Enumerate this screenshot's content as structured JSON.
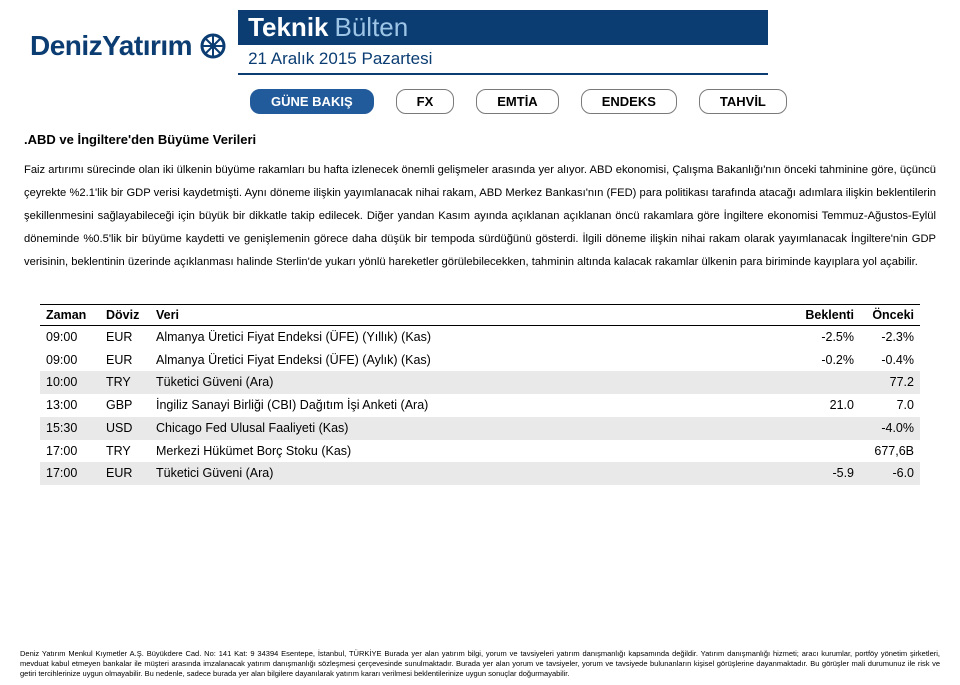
{
  "brand": {
    "name": "DenizYatırım",
    "color": "#0b3d73"
  },
  "title": {
    "strong": "Teknik",
    "light": "Bülten"
  },
  "date": "21 Aralık 2015 Pazartesi",
  "tabs": {
    "items": [
      {
        "label": "GÜNE BAKIŞ",
        "active": true
      },
      {
        "label": "FX",
        "active": false
      },
      {
        "label": "EMTİA",
        "active": false
      },
      {
        "label": "ENDEKS",
        "active": false
      },
      {
        "label": "TAHVİL",
        "active": false
      }
    ]
  },
  "article": {
    "heading": ".ABD ve İngiltere'den Büyüme Verileri",
    "body": "Faiz artırımı sürecinde olan iki ülkenin büyüme rakamları bu hafta izlenecek önemli gelişmeler arasında yer alıyor. ABD ekonomisi, Çalışma Bakanlığı'nın önceki tahminine göre, üçüncü çeyrekte %2.1'lik bir GDP verisi kaydetmişti. Aynı döneme ilişkin yayımlanacak nihai rakam, ABD Merkez Bankası'nın (FED) para politikası tarafında atacağı adımlara ilişkin beklentilerin şekillenmesini sağlayabileceği için büyük bir dikkatle takip edilecek. Diğer yandan Kasım ayında açıklanan açıklanan öncü rakamlara göre İngiltere ekonomisi Temmuz-Ağustos-Eylül döneminde %0.5'lik bir büyüme kaydetti ve genişlemenin görece daha düşük bir tempoda sürdüğünü gösterdi. İlgili döneme ilişkin nihai rakam olarak yayımlanacak İngiltere'nin GDP verisinin, beklentinin üzerinde açıklanması halinde Sterlin'de yukarı yönlü hareketler görülebilecekken, tahminin altında kalacak rakamlar ülkenin para biriminde kayıplara yol açabilir."
  },
  "table": {
    "headers": {
      "time": "Zaman",
      "currency": "Döviz",
      "desc": "Veri",
      "expect": "Beklenti",
      "prev": "Önceki"
    },
    "rows": [
      {
        "time": "09:00",
        "cur": "EUR",
        "desc": "Almanya Üretici Fiyat Endeksi (ÜFE) (Yıllık) (Kas)",
        "bek": "-2.5%",
        "onc": "-2.3%",
        "shade": false
      },
      {
        "time": "09:00",
        "cur": "EUR",
        "desc": "Almanya Üretici Fiyat Endeksi (ÜFE) (Aylık) (Kas)",
        "bek": "-0.2%",
        "onc": "-0.4%",
        "shade": false
      },
      {
        "time": "10:00",
        "cur": "TRY",
        "desc": "Tüketici Güveni (Ara)",
        "bek": "",
        "onc": "77.2",
        "shade": true
      },
      {
        "time": "13:00",
        "cur": "GBP",
        "desc": "İngiliz Sanayi Birliği (CBI) Dağıtım İşi Anketi (Ara)",
        "bek": "21.0",
        "onc": "7.0",
        "shade": false
      },
      {
        "time": "15:30",
        "cur": "USD",
        "desc": "Chicago Fed Ulusal Faaliyeti (Kas)",
        "bek": "",
        "onc": "-4.0%",
        "shade": true
      },
      {
        "time": "17:00",
        "cur": "TRY",
        "desc": "Merkezi Hükümet Borç Stoku (Kas)",
        "bek": "",
        "onc": "677,6B",
        "shade": false
      },
      {
        "time": "17:00",
        "cur": "EUR",
        "desc": "Tüketici Güveni (Ara)",
        "bek": "-5.9",
        "onc": "-6.0",
        "shade": true
      }
    ]
  },
  "footer": "Deniz Yatırım Menkul Kıymetler A.Ş.  Büyükdere Cad.  No: 141 Kat: 9 34394 Esentepe, İstanbul, TÜRKİYE Burada yer alan yatırım bilgi, yorum ve tavsiyeleri yatırım danışmanlığı kapsamında değildir. Yatırım danışmanlığı hizmeti; aracı kurumlar, portföy yönetim şirketleri, mevduat kabul etmeyen bankalar ile müşteri arasında imzalanacak yatırım danışmanlığı sözleşmesi çerçevesinde sunulmaktadır. Burada yer alan yorum ve tavsiyeler, yorum ve tavsiyede bulunanların kişisel görüşlerine dayanmaktadır. Bu görüşler mali durumunuz ile risk ve getiri tercihlerinize uygun olmayabilir. Bu nedenle, sadece burada yer alan bilgilere dayanılarak yatırım kararı verilmesi beklentilerinize uygun sonuçlar doğurmayabilir."
}
